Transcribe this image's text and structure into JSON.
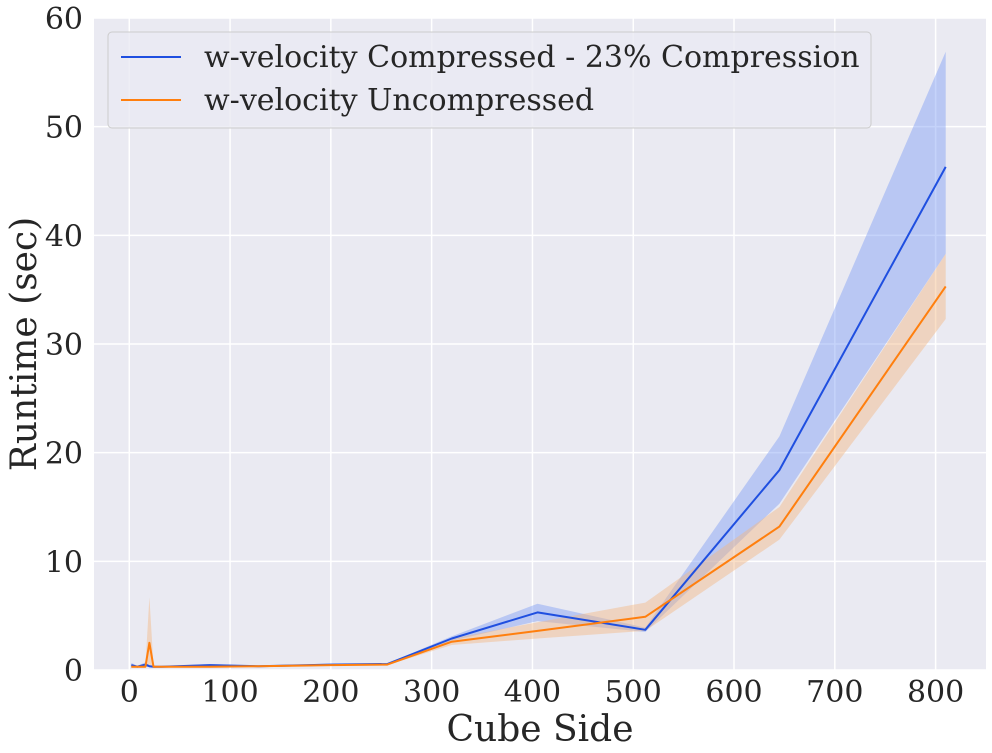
{
  "chart_data": {
    "type": "line",
    "title": "",
    "xlabel": "Cube Side",
    "ylabel": "Runtime (sec)",
    "xlim": [
      -35,
      850
    ],
    "ylim": [
      0,
      60
    ],
    "xticks": [
      0,
      100,
      200,
      300,
      400,
      500,
      600,
      700,
      800
    ],
    "yticks": [
      0,
      10,
      20,
      30,
      40,
      50,
      60
    ],
    "grid": true,
    "legend_position": "top-left",
    "colors": {
      "background": "#eaeaf2",
      "grid": "#ffffff",
      "text": "#262626"
    },
    "series": [
      {
        "name": "w-velocity Compressed - 23% Compression",
        "color": "#1f4fe0",
        "band_color": "#7f9ef5",
        "x": [
          2,
          8,
          16,
          20,
          24,
          32,
          80,
          128,
          200,
          256,
          320,
          405,
          512,
          645,
          810
        ],
        "y": [
          0.45,
          0.3,
          0.5,
          0.35,
          0.3,
          0.3,
          0.45,
          0.35,
          0.5,
          0.55,
          2.9,
          5.3,
          3.7,
          18.4,
          46.3
        ],
        "lower": [
          0.25,
          0.2,
          0.3,
          0.25,
          0.2,
          0.25,
          0.35,
          0.3,
          0.4,
          0.5,
          2.7,
          4.5,
          3.5,
          15.3,
          38.3
        ],
        "upper": [
          0.65,
          0.4,
          0.7,
          0.45,
          0.4,
          0.35,
          0.55,
          0.4,
          0.6,
          0.6,
          3.1,
          6.1,
          3.9,
          21.5,
          56.9
        ]
      },
      {
        "name": "w-velocity Uncompressed",
        "color": "#ff7f0e",
        "band_color": "#f5b783",
        "x": [
          2,
          8,
          16,
          20,
          24,
          32,
          80,
          128,
          200,
          256,
          320,
          405,
          512,
          645,
          810
        ],
        "y": [
          0.3,
          0.3,
          0.3,
          2.5,
          0.3,
          0.3,
          0.3,
          0.35,
          0.45,
          0.5,
          2.6,
          3.6,
          4.9,
          13.2,
          35.3
        ],
        "lower": [
          0.2,
          0.2,
          0.2,
          0.5,
          0.2,
          0.25,
          0.25,
          0.3,
          0.4,
          0.45,
          2.3,
          2.9,
          3.6,
          12.0,
          32.3
        ],
        "upper": [
          0.4,
          0.4,
          0.4,
          6.7,
          0.4,
          0.35,
          0.35,
          0.4,
          0.5,
          0.55,
          2.9,
          4.4,
          6.2,
          15.0,
          38.3
        ]
      }
    ]
  }
}
